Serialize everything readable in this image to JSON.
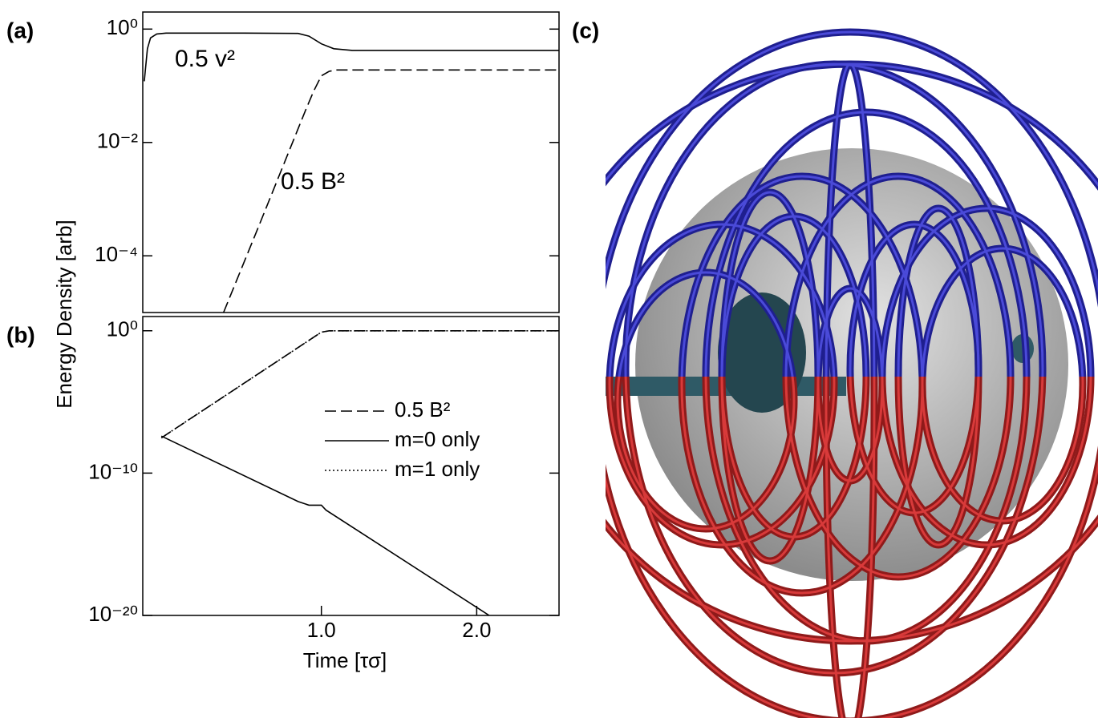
{
  "chart_data": [
    {
      "type": "line",
      "panel_label": "(a)",
      "ylabel": "Energy Density [arb]",
      "log_y": true,
      "xlim": [
        -0.15,
        2.53
      ],
      "ylim": [
        1e-05,
        2
      ],
      "yticks": [
        {
          "value": 1,
          "label": "10⁰"
        },
        {
          "value": 0.01,
          "label": "10⁻²"
        },
        {
          "value": 0.0001,
          "label": "10⁻⁴"
        }
      ],
      "legend": "inline",
      "series": [
        {
          "name": "0.5 v²",
          "color": "#000000",
          "linestyle": "solid",
          "x": [
            -0.14,
            -0.12,
            -0.1,
            -0.06,
            0.0,
            0.5,
            0.85,
            0.92,
            1.0,
            1.08,
            1.2,
            2.53
          ],
          "values": [
            0.12,
            0.45,
            0.7,
            0.82,
            0.85,
            0.85,
            0.84,
            0.75,
            0.55,
            0.45,
            0.42,
            0.42
          ]
        },
        {
          "name": "0.5 B²",
          "color": "#000000",
          "linestyle": "dashed",
          "x": [
            0.37,
            0.6,
            0.8,
            0.9,
            0.95,
            1.0,
            1.05,
            1.1,
            2.53
          ],
          "values": [
            1e-05,
            0.00035,
            0.008,
            0.038,
            0.08,
            0.15,
            0.18,
            0.19,
            0.19
          ]
        }
      ]
    },
    {
      "type": "line",
      "panel_label": "(b)",
      "xlabel": "Time [τσ]",
      "log_y": true,
      "xlim": [
        -0.15,
        2.53
      ],
      "ylim": [
        1e-20,
        10
      ],
      "xticks": [
        {
          "value": 1,
          "label": "1.0"
        },
        {
          "value": 2,
          "label": "2.0"
        }
      ],
      "yticks": [
        {
          "value": 1,
          "label": "10⁰"
        },
        {
          "value": 1e-10,
          "label": "10⁻¹⁰"
        },
        {
          "value": 1e-20,
          "label": "10⁻²⁰"
        }
      ],
      "legend": "right",
      "series": [
        {
          "name": "0.5 B²",
          "color": "#000000",
          "linestyle": "dashed",
          "x": [
            -0.03,
            1.0,
            1.05,
            2.53
          ],
          "values": [
            3e-08,
            0.8,
            1,
            1
          ]
        },
        {
          "name": "m=0 only",
          "color": "#000000",
          "linestyle": "solid",
          "x": [
            -0.03,
            0.85,
            0.92,
            1.0,
            1.03,
            2.08
          ],
          "values": [
            4e-08,
            1e-12,
            5.6e-13,
            5.6e-13,
            2.5e-13,
            1e-20
          ]
        },
        {
          "name": "m=1 only",
          "color": "#000000",
          "linestyle": "dotted",
          "x": [
            -0.03,
            1.0,
            1.05,
            2.53
          ],
          "values": [
            3e-08,
            0.8,
            1,
            1
          ]
        }
      ]
    }
  ],
  "image_panel": {
    "label": "(c)"
  }
}
